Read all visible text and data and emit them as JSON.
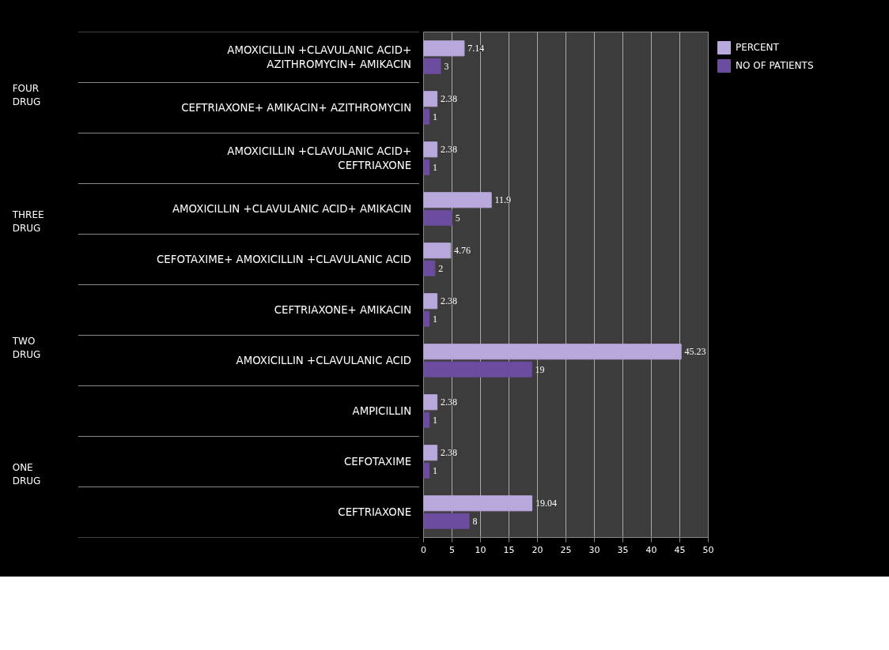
{
  "chart_data": {
    "type": "bar",
    "orientation": "horizontal",
    "categories": [
      "AMOXICILLIN +CLAVULANIC ACID+ AZITHROMYCIN+ AMIKACIN",
      "CEFTRIAXONE+ AMIKACIN+ AZITHROMYCIN",
      "AMOXICILLIN +CLAVULANIC ACID+ CEFTRIAXONE",
      "AMOXICILLIN +CLAVULANIC ACID+ AMIKACIN",
      "CEFOTAXIME+ AMOXICILLIN +CLAVULANIC ACID",
      "CEFTRIAXONE+ AMIKACIN",
      "AMOXICILLIN +CLAVULANIC ACID",
      "AMPICILLIN",
      "CEFOTAXIME",
      "CEFTRIAXONE"
    ],
    "series": [
      {
        "name": "PERCENT",
        "color": "#b9a8dc",
        "values": [
          7.14,
          2.38,
          2.38,
          11.9,
          4.76,
          2.38,
          45.23,
          2.38,
          2.38,
          19.04
        ]
      },
      {
        "name": "NO OF PATIENTS",
        "color": "#6b4c9e",
        "values": [
          3,
          1,
          1,
          5,
          2,
          1,
          19,
          1,
          1,
          8
        ]
      }
    ],
    "xlim": [
      0,
      50
    ],
    "xticks": [
      0,
      5,
      10,
      15,
      20,
      25,
      30,
      35,
      40,
      45,
      50
    ],
    "grid": "x",
    "legend": "right",
    "data_labels": true,
    "annotations": [
      "FOUR DRUG",
      "THREE DRUG",
      "TWO DRUG",
      "ONE DRUG"
    ]
  }
}
